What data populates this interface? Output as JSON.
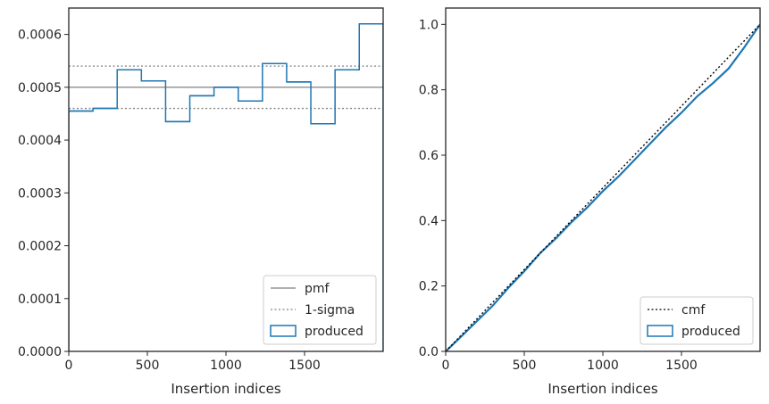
{
  "chart_data": [
    {
      "type": "histogram",
      "xlabel": "Insertion indices",
      "ylabel": "",
      "xlim": [
        0,
        2000
      ],
      "ylim": [
        0,
        0.00065
      ],
      "xticks": [
        0,
        500,
        1000,
        1500
      ],
      "xtick_labels": [
        "0",
        "500",
        "1000",
        "1500"
      ],
      "yticks": [
        0,
        0.0001,
        0.0002,
        0.0003,
        0.0004,
        0.0005,
        0.0006
      ],
      "ytick_labels": [
        "0.0000",
        "0.0001",
        "0.0002",
        "0.0003",
        "0.0004",
        "0.0005",
        "0.0006"
      ],
      "bin_edges": [
        0,
        154,
        308,
        462,
        616,
        770,
        924,
        1078,
        1232,
        1386,
        1540,
        1694,
        1848,
        2000
      ],
      "series": [
        {
          "name": "produced",
          "style": "step",
          "color": "#1f77b4",
          "values": [
            0.000455,
            0.00046,
            0.000533,
            0.000512,
            0.000435,
            0.000484,
            0.0005,
            0.000474,
            0.000545,
            0.00051,
            0.000431,
            0.000533,
            0.00062
          ]
        }
      ],
      "reference_lines": [
        {
          "name": "pmf",
          "y": 0.0005,
          "style": "solid",
          "color": "#808080"
        },
        {
          "name": "1-sigma",
          "y": 0.00054,
          "style": "dotted",
          "color": "#808080"
        },
        {
          "name": "1-sigma",
          "y": 0.00046,
          "style": "dotted",
          "color": "#808080"
        }
      ],
      "legend": {
        "placement": "lower-right",
        "entries": [
          "pmf",
          "1-sigma",
          "produced"
        ]
      }
    },
    {
      "type": "line",
      "xlabel": "Insertion indices",
      "ylabel": "",
      "xlim": [
        0,
        2000
      ],
      "ylim": [
        0,
        1.05
      ],
      "xticks": [
        0,
        500,
        1000,
        1500
      ],
      "xtick_labels": [
        "0",
        "500",
        "1000",
        "1500"
      ],
      "yticks": [
        0,
        0.2,
        0.4,
        0.6,
        0.8,
        1.0
      ],
      "ytick_labels": [
        "0.0",
        "0.2",
        "0.4",
        "0.6",
        "0.8",
        "1.0"
      ],
      "series": [
        {
          "name": "cmf",
          "style": "dotted",
          "color": "#000000",
          "x": [
            0,
            2000
          ],
          "y": [
            0,
            1.0
          ]
        },
        {
          "name": "produced",
          "style": "solid",
          "color": "#1f77b4",
          "x": [
            0,
            100,
            200,
            300,
            400,
            500,
            600,
            700,
            800,
            900,
            1000,
            1100,
            1200,
            1300,
            1400,
            1500,
            1600,
            1700,
            1800,
            1900,
            2000
          ],
          "y": [
            0,
            0.046,
            0.093,
            0.14,
            0.195,
            0.245,
            0.3,
            0.345,
            0.395,
            0.44,
            0.49,
            0.535,
            0.585,
            0.635,
            0.685,
            0.73,
            0.78,
            0.82,
            0.865,
            0.93,
            1.0
          ]
        }
      ],
      "legend": {
        "placement": "lower-right",
        "entries": [
          "cmf",
          "produced"
        ]
      }
    }
  ]
}
